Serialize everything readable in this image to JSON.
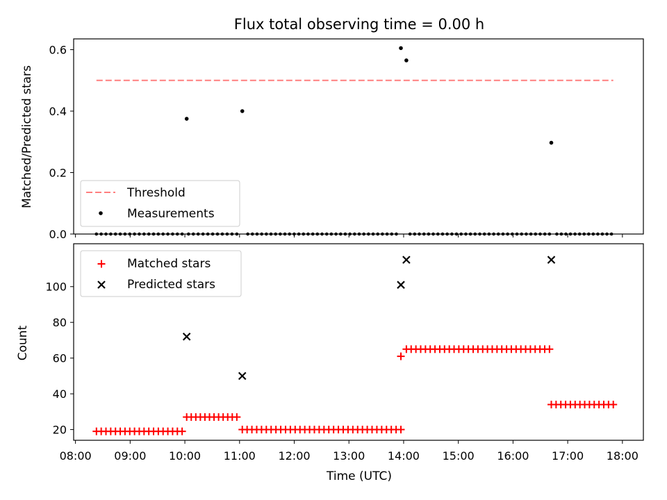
{
  "title": "Flux total observing time = 0.00 h",
  "chart_data": [
    {
      "type": "scatter",
      "panel": "top",
      "ylabel": "Matched/Predicted stars",
      "ylim": [
        0,
        0.635
      ],
      "xlim": [
        "07:58",
        "18:23"
      ],
      "yticks": [
        0.0,
        0.2,
        0.4,
        0.6
      ],
      "ytick_labels": [
        "0.0",
        "0.2",
        "0.4",
        "0.6"
      ],
      "legend": {
        "placement": "lower left",
        "entries": [
          "Threshold",
          "Measurements"
        ]
      },
      "threshold": {
        "name": "Threshold",
        "value": 0.5,
        "x": [
          "08:23",
          "17:50"
        ],
        "color": "#ff7f7f",
        "style": "dashed"
      },
      "measurements": {
        "name": "Measurements",
        "color": "#000000",
        "zero_runs": [
          {
            "start": "08:23",
            "end": "09:57",
            "count": 19
          },
          {
            "start": "10:04",
            "end": "10:57",
            "count": 11
          },
          {
            "start": "11:09",
            "end": "13:52",
            "count": 33
          },
          {
            "start": "14:07",
            "end": "16:40",
            "count": 31
          },
          {
            "start": "16:48",
            "end": "17:48",
            "count": 13
          }
        ],
        "points": [
          {
            "x": "10:02",
            "y": 0.375
          },
          {
            "x": "11:03",
            "y": 0.4
          },
          {
            "x": "13:57",
            "y": 0.605
          },
          {
            "x": "14:03",
            "y": 0.565
          },
          {
            "x": "16:42",
            "y": 0.297
          }
        ]
      }
    },
    {
      "type": "scatter",
      "panel": "bottom",
      "xlabel": "Time (UTC)",
      "ylabel": "Count",
      "ylim": [
        14,
        124
      ],
      "xlim": [
        "07:58",
        "18:23"
      ],
      "yticks": [
        20,
        40,
        60,
        80,
        100
      ],
      "ytick_labels": [
        "20",
        "40",
        "60",
        "80",
        "100"
      ],
      "xticks": [
        "08:00",
        "09:00",
        "10:00",
        "11:00",
        "12:00",
        "13:00",
        "14:00",
        "15:00",
        "16:00",
        "17:00",
        "18:00"
      ],
      "legend": {
        "placement": "upper left",
        "entries": [
          "Matched stars",
          "Predicted stars"
        ]
      },
      "matched": {
        "name": "Matched stars",
        "color": "#ff0000",
        "marker": "+",
        "runs": [
          {
            "start": "08:23",
            "end": "09:57",
            "count": 19,
            "value": 19
          },
          {
            "start": "10:02",
            "end": "10:57",
            "count": 12,
            "value": 27
          },
          {
            "start": "11:03",
            "end": "13:57",
            "count": 34,
            "value": 20
          },
          {
            "start": "14:03",
            "end": "16:40",
            "count": 31,
            "value": 65
          },
          {
            "start": "16:42",
            "end": "17:50",
            "count": 14,
            "value": 34
          }
        ],
        "points": [
          {
            "x": "13:57",
            "y": 61
          }
        ]
      },
      "predicted": {
        "name": "Predicted stars",
        "color": "#000000",
        "marker": "x",
        "points": [
          {
            "x": "10:02",
            "y": 72
          },
          {
            "x": "11:03",
            "y": 50
          },
          {
            "x": "13:57",
            "y": 101
          },
          {
            "x": "14:03",
            "y": 115
          },
          {
            "x": "16:42",
            "y": 115
          }
        ]
      }
    }
  ]
}
